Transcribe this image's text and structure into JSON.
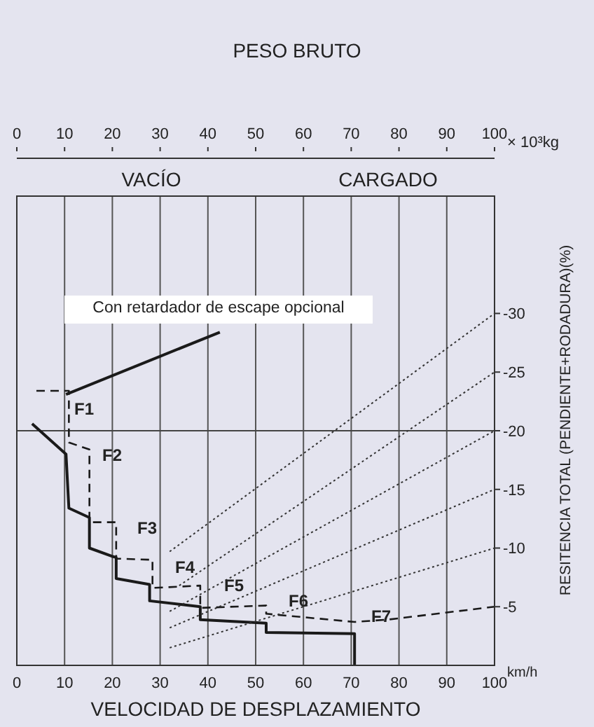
{
  "chart_data": {
    "type": "line",
    "title": "PESO BRUTO",
    "xlabel": "VELOCIDAD DE DESPLAZAMIENTO",
    "ylabel": "RESITENCIA TOTAL (PENDIENTE+RODADURA)(%)",
    "x2label": "× 10³kg",
    "xlim": [
      0,
      100
    ],
    "xticks": [
      0,
      10,
      20,
      30,
      40,
      50,
      60,
      70,
      80,
      90,
      100
    ],
    "x2lim": [
      0,
      100
    ],
    "x2ticks": [
      0,
      10,
      20,
      30,
      40,
      50,
      60,
      70,
      80,
      90,
      100
    ],
    "ylim": [
      0,
      -40
    ],
    "yticks": [
      -30,
      -25,
      -20,
      -15,
      -10,
      -5
    ],
    "grid": "x",
    "marker": "none",
    "series": [
      {
        "color": "#1a1a1a",
        "line_style": "solid",
        "x": [
          3.2,
          10.3,
          10.9,
          15.2,
          15.2,
          19.9,
          20.8,
          20.8,
          27.8,
          27.8,
          38.4,
          38.4,
          52.2,
          52.2,
          70.7,
          70.7
        ],
        "values": [
          -20.6,
          -18.0,
          -13.4,
          -12.6,
          -10.0,
          -9.3,
          -9.2,
          -7.4,
          -6.9,
          -5.5,
          -5.0,
          -3.9,
          -3.6,
          -2.8,
          -2.7,
          0
        ]
      },
      {
        "color": "#1a1a1a",
        "line_style": "dashed",
        "x": [
          4.1,
          10.9,
          10.9,
          15.2,
          15.2,
          20.8,
          20.8,
          28.4,
          28.4,
          38.4,
          38.4,
          52.2,
          52.2,
          70.7,
          77.7,
          100
        ],
        "values": [
          -23.4,
          -23.4,
          -19.0,
          -18.4,
          -12.2,
          -12.2,
          -9.1,
          -9.0,
          -6.6,
          -6.8,
          -4.9,
          -5.1,
          -4.4,
          -3.7,
          -3.9,
          -5.0
        ]
      },
      {
        "color": "#1a1a1a",
        "line_style": "solid",
        "x": [
          10.3,
          42.5
        ],
        "values": [
          -23.1,
          -28.4
        ]
      },
      {
        "color": "#333333",
        "line_style": "dotted",
        "x": [
          32,
          100
        ],
        "values": [
          -9.7,
          -30
        ]
      },
      {
        "color": "#333333",
        "line_style": "dotted",
        "x": [
          34,
          100
        ],
        "values": [
          -6.8,
          -25
        ]
      },
      {
        "color": "#333333",
        "line_style": "dotted",
        "x": [
          32,
          100
        ],
        "values": [
          -4.6,
          -20
        ]
      },
      {
        "color": "#333333",
        "line_style": "dotted",
        "x": [
          32,
          100
        ],
        "values": [
          -3.2,
          -15
        ]
      },
      {
        "color": "#333333",
        "line_style": "dotted",
        "x": [
          32,
          100
        ],
        "values": [
          -1.5,
          -10
        ]
      }
    ],
    "ref_lines": [
      {
        "axis": "y",
        "value": -20,
        "color": "#444444",
        "line_style": "solid"
      }
    ],
    "annotations": [
      "VACÍO",
      "CARGADO",
      "km/h",
      "Con retardador de escape opcional",
      "F1",
      "F2",
      "F3",
      "F4",
      "F5",
      "F6",
      "F7"
    ]
  }
}
